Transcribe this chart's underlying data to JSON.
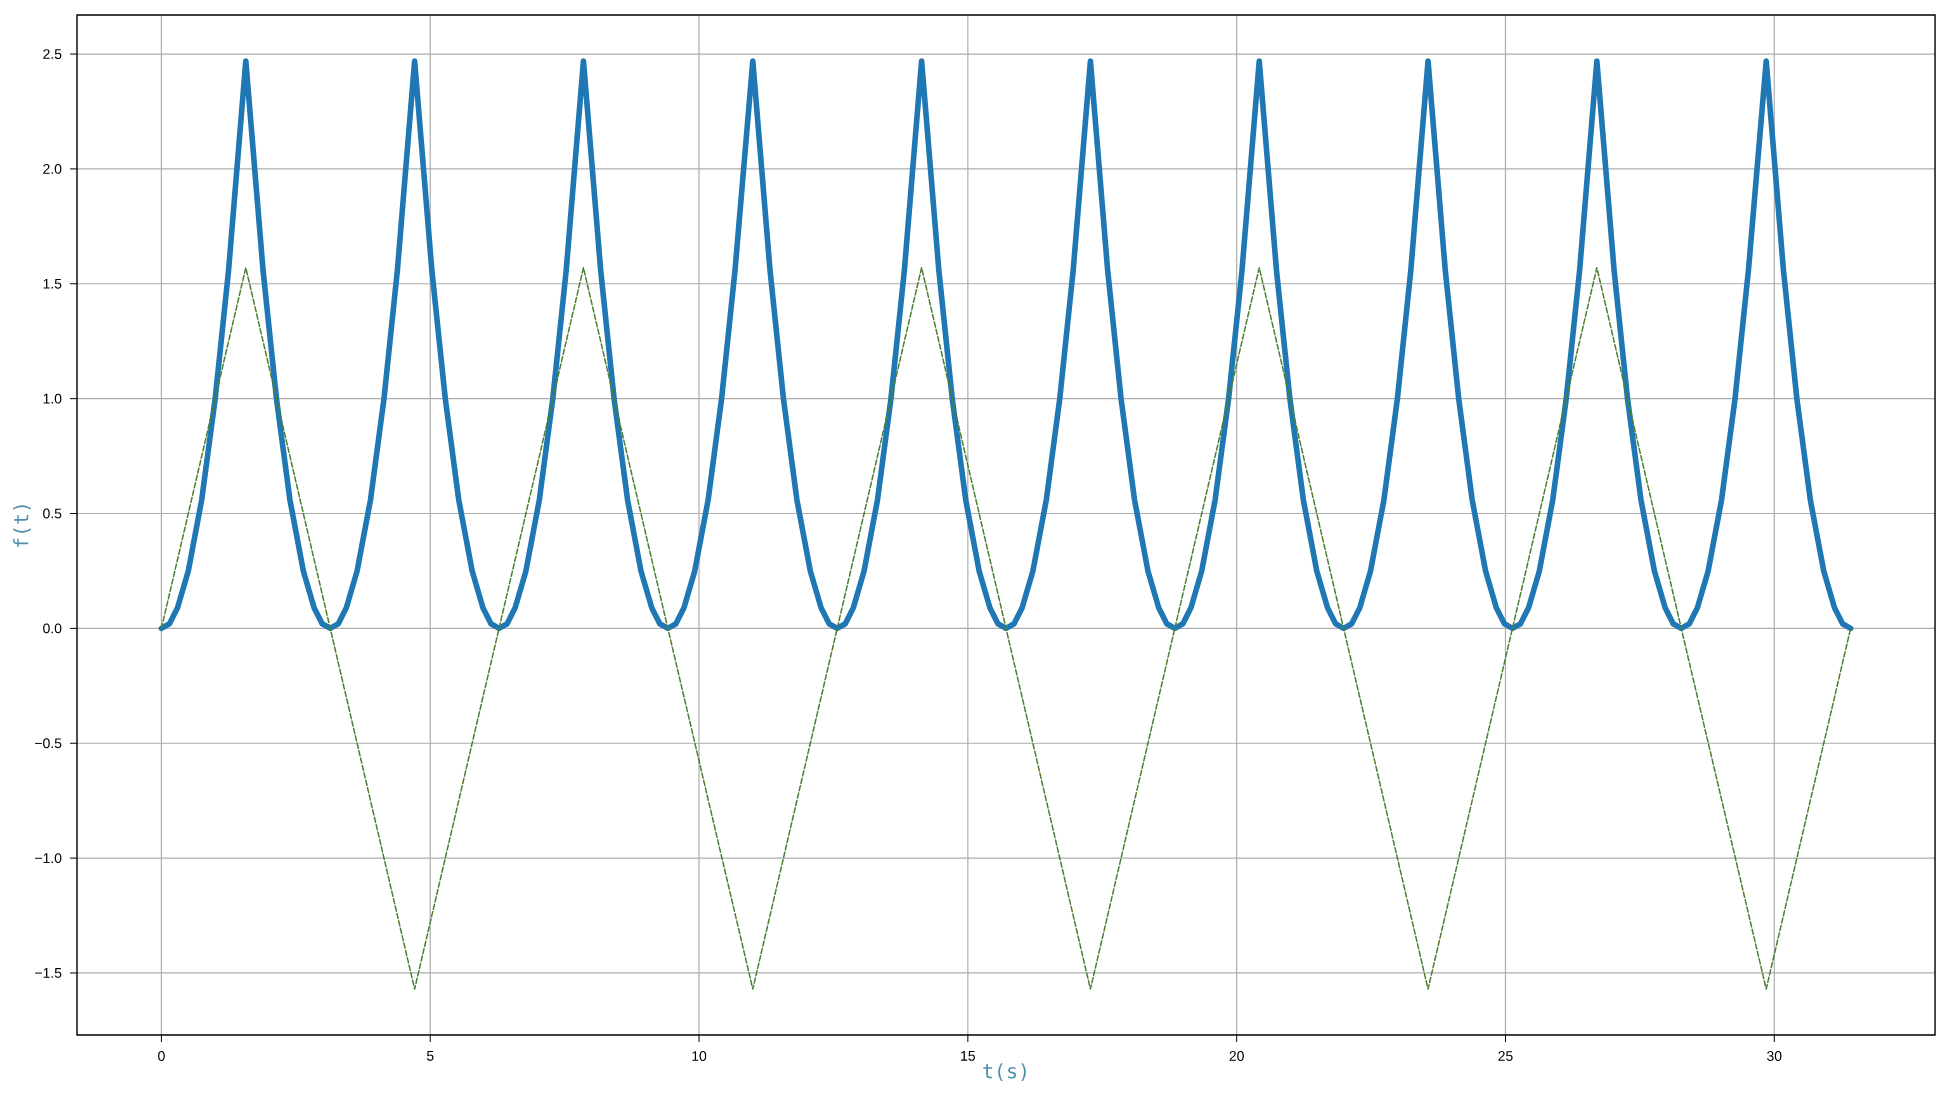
{
  "chart_data": {
    "type": "line",
    "xlabel": "t(s)",
    "ylabel": "f(t)",
    "xlim": [
      -1.57,
      32.99
    ],
    "ylim": [
      -1.77,
      2.67
    ],
    "xticks": [
      0,
      5,
      10,
      15,
      20,
      25,
      30
    ],
    "yticks": [
      {
        "value": -1.5,
        "label": "−1.5"
      },
      {
        "value": -1.0,
        "label": "−1.0"
      },
      {
        "value": -0.5,
        "label": "−0.5"
      },
      {
        "value": 0.0,
        "label": "0.0"
      },
      {
        "value": 0.5,
        "label": "0.5"
      },
      {
        "value": 1.0,
        "label": "1.0"
      },
      {
        "value": 1.5,
        "label": "1.5"
      },
      {
        "value": 2.0,
        "label": "2.0"
      },
      {
        "value": 2.5,
        "label": "2.5"
      }
    ],
    "grid": true,
    "series": [
      {
        "color": "#1f77b4",
        "line_style": "solid",
        "x": [
          0,
          0.15,
          0.3,
          0.5,
          0.75,
          1.0,
          1.25,
          1.57,
          1.89,
          2.14,
          2.39,
          2.64,
          2.84,
          2.99,
          3.14,
          3.29,
          3.44,
          3.64,
          3.89,
          4.14,
          4.39,
          4.71,
          5.03,
          5.28,
          5.53,
          5.78,
          5.98,
          6.13,
          6.28,
          6.43,
          6.58,
          6.78,
          7.03,
          7.28,
          7.53,
          7.85,
          8.17,
          8.42,
          8.67,
          8.92,
          9.12,
          9.27,
          9.42,
          9.57,
          9.72,
          9.92,
          10.17,
          10.42,
          10.67,
          11.0,
          11.32,
          11.57,
          11.82,
          12.07,
          12.27,
          12.42,
          12.57,
          12.72,
          12.87,
          13.07,
          13.32,
          13.57,
          13.82,
          14.14,
          14.46,
          14.71,
          14.96,
          15.21,
          15.41,
          15.56,
          15.71,
          15.86,
          16.01,
          16.21,
          16.46,
          16.71,
          16.96,
          17.28,
          17.6,
          17.85,
          18.1,
          18.35,
          18.55,
          18.7,
          18.85,
          19.0,
          19.15,
          19.35,
          19.6,
          19.85,
          20.1,
          20.42,
          20.74,
          20.99,
          21.24,
          21.49,
          21.69,
          21.84,
          21.99,
          22.14,
          22.29,
          22.49,
          22.74,
          22.99,
          23.24,
          23.56,
          23.88,
          24.13,
          24.38,
          24.63,
          24.83,
          24.98,
          25.13,
          25.28,
          25.43,
          25.63,
          25.88,
          26.13,
          26.38,
          26.7,
          27.02,
          27.27,
          27.52,
          27.77,
          27.97,
          28.12,
          28.27,
          28.42,
          28.57,
          28.77,
          29.02,
          29.27,
          29.52,
          29.85,
          30.17,
          30.42,
          30.67,
          30.92,
          31.12,
          31.27,
          31.42
        ],
        "values": [
          0,
          0.02,
          0.09,
          0.25,
          0.56,
          1.0,
          1.56,
          2.47,
          1.56,
          1.0,
          0.56,
          0.25,
          0.09,
          0.02,
          0,
          0.02,
          0.09,
          0.25,
          0.56,
          1.0,
          1.56,
          2.47,
          1.56,
          1.0,
          0.56,
          0.25,
          0.09,
          0.02,
          0,
          0.02,
          0.09,
          0.25,
          0.56,
          1.0,
          1.56,
          2.47,
          1.56,
          1.0,
          0.56,
          0.25,
          0.09,
          0.02,
          0,
          0.02,
          0.09,
          0.25,
          0.56,
          1.0,
          1.56,
          2.47,
          1.56,
          1.0,
          0.56,
          0.25,
          0.09,
          0.02,
          0,
          0.02,
          0.09,
          0.25,
          0.56,
          1.0,
          1.56,
          2.47,
          1.56,
          1.0,
          0.56,
          0.25,
          0.09,
          0.02,
          0,
          0.02,
          0.09,
          0.25,
          0.56,
          1.0,
          1.56,
          2.47,
          1.56,
          1.0,
          0.56,
          0.25,
          0.09,
          0.02,
          0,
          0.02,
          0.09,
          0.25,
          0.56,
          1.0,
          1.56,
          2.47,
          1.56,
          1.0,
          0.56,
          0.25,
          0.09,
          0.02,
          0,
          0.02,
          0.09,
          0.25,
          0.56,
          1.0,
          1.56,
          2.47,
          1.56,
          1.0,
          0.56,
          0.25,
          0.09,
          0.02,
          0,
          0.02,
          0.09,
          0.25,
          0.56,
          1.0,
          1.56,
          2.47,
          1.56,
          1.0,
          0.56,
          0.25,
          0.09,
          0.02,
          0,
          0.02,
          0.09,
          0.25,
          0.56,
          1.0,
          1.56,
          2.47,
          1.56,
          1.0,
          0.56,
          0.25,
          0.09,
          0.02,
          0
        ]
      },
      {
        "color": "#4c8030",
        "line_style": "dashed",
        "x": [
          0,
          1.57,
          3.14,
          4.71,
          6.28,
          7.85,
          9.42,
          11.0,
          12.57,
          14.14,
          15.71,
          17.28,
          18.85,
          20.42,
          21.99,
          23.56,
          25.13,
          26.7,
          28.27,
          29.85,
          31.42
        ],
        "values": [
          0,
          1.57,
          0,
          -1.57,
          0,
          1.57,
          0,
          -1.57,
          0,
          1.57,
          0,
          -1.57,
          0,
          1.57,
          0,
          -1.57,
          0,
          1.57,
          0,
          -1.57,
          0
        ]
      }
    ]
  }
}
